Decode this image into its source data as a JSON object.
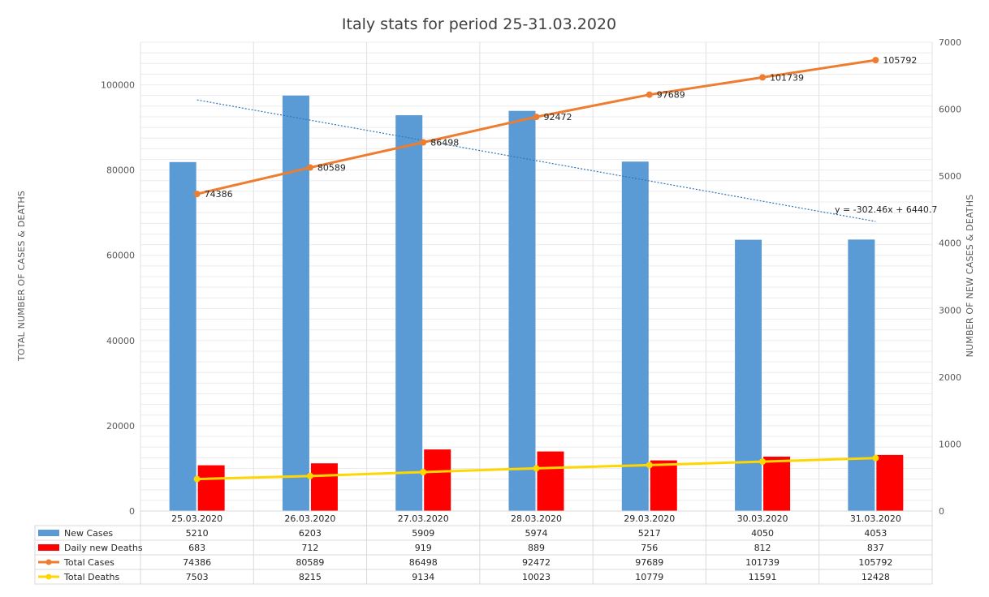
{
  "chart_data": {
    "type": "bar",
    "title": "Italy stats for period 25-31.03.2020",
    "ylabel_left": "TOTAL NUMBER OF CASES & DEATHS",
    "ylabel_right": "NUMBER OF NEW CASES & DEATHS",
    "ylim_left": [
      0,
      110000
    ],
    "ylim_right": [
      0,
      7000
    ],
    "y_ticks_left": [
      "0",
      "20000",
      "40000",
      "60000",
      "80000",
      "100000"
    ],
    "y_ticks_right": [
      "0",
      "1000",
      "2000",
      "3000",
      "4000",
      "5000",
      "6000",
      "7000"
    ],
    "grid": true,
    "legend_placement": "data table below chart",
    "categories": [
      "25.03.2020",
      "26.03.2020",
      "27.03.2020",
      "28.03.2020",
      "29.03.2020",
      "30.03.2020",
      "31.03.2020"
    ],
    "series": [
      {
        "name": "New Cases",
        "kind": "bar",
        "axis": "right",
        "color": "#5b9bd5",
        "values": [
          5210,
          6203,
          5909,
          5974,
          5217,
          4050,
          4053
        ]
      },
      {
        "name": "Daily new Deaths",
        "kind": "bar",
        "axis": "right",
        "color": "#ff0000",
        "values": [
          683,
          712,
          919,
          889,
          756,
          812,
          837
        ]
      },
      {
        "name": "Total Cases",
        "kind": "line",
        "axis": "left",
        "color": "#ed7d31",
        "values": [
          74386,
          80589,
          86498,
          92472,
          97689,
          101739,
          105792
        ]
      },
      {
        "name": "Total Deaths",
        "kind": "line",
        "axis": "left",
        "color": "#ffd700",
        "values": [
          7503,
          8215,
          9134,
          10023,
          10779,
          11591,
          12428
        ]
      }
    ],
    "trendline": {
      "series": "New Cases",
      "type": "linear",
      "color": "#2e75b6",
      "slope": -302.46,
      "intercept": 6440.7,
      "equation_label": "y = -302.46x + 6440.7"
    }
  }
}
